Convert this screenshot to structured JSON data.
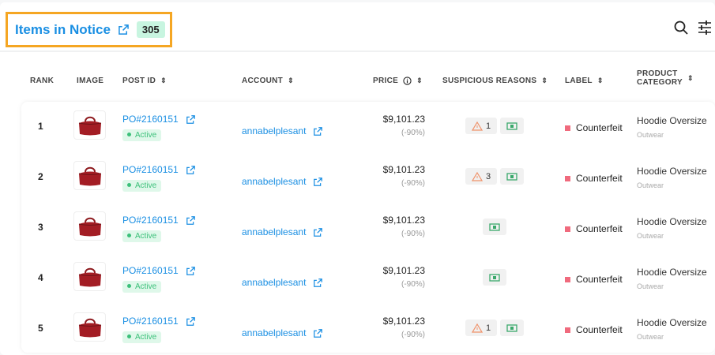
{
  "header": {
    "title": "Items in Notice",
    "count": "305",
    "search_icon": "search-icon",
    "filter_icon": "sliders-icon"
  },
  "columns": {
    "rank": "RANK",
    "image": "IMAGE",
    "post_id": "POST ID",
    "account": "ACCOUNT",
    "price": "PRICE",
    "reasons": "SUSPICIOUS REASONS",
    "label": "LABEL",
    "category_line1": "PRODUCT",
    "category_line2": "CATEGORY"
  },
  "colors": {
    "accent": "#1a8fe3",
    "highlight_border": "#f5a623",
    "counterfeit": "#f06a7d",
    "active": "#3cc07a"
  },
  "rows": [
    {
      "rank": "1",
      "post_id": "PO#2160151",
      "status": "Active",
      "account": "annabelplesant",
      "price": "$9,101.23",
      "discount": "(-90%)",
      "warning_count": "1",
      "label": "Counterfeit",
      "category": "Hoodie Oversize",
      "subcategory": "Outwear"
    },
    {
      "rank": "2",
      "post_id": "PO#2160151",
      "status": "Active",
      "account": "annabelplesant",
      "price": "$9,101.23",
      "discount": "(-90%)",
      "warning_count": "3",
      "label": "Counterfeit",
      "category": "Hoodie Oversize",
      "subcategory": "Outwear"
    },
    {
      "rank": "3",
      "post_id": "PO#2160151",
      "status": "Active",
      "account": "annabelplesant",
      "price": "$9,101.23",
      "discount": "(-90%)",
      "warning_count": null,
      "label": "Counterfeit",
      "category": "Hoodie Oversize",
      "subcategory": "Outwear"
    },
    {
      "rank": "4",
      "post_id": "PO#2160151",
      "status": "Active",
      "account": "annabelplesant",
      "price": "$9,101.23",
      "discount": "(-90%)",
      "warning_count": null,
      "label": "Counterfeit",
      "category": "Hoodie Oversize",
      "subcategory": "Outwear"
    },
    {
      "rank": "5",
      "post_id": "PO#2160151",
      "status": "Active",
      "account": "annabelplesant",
      "price": "$9,101.23",
      "discount": "(-90%)",
      "warning_count": "1",
      "label": "Counterfeit",
      "category": "Hoodie Oversize",
      "subcategory": "Outwear"
    }
  ]
}
